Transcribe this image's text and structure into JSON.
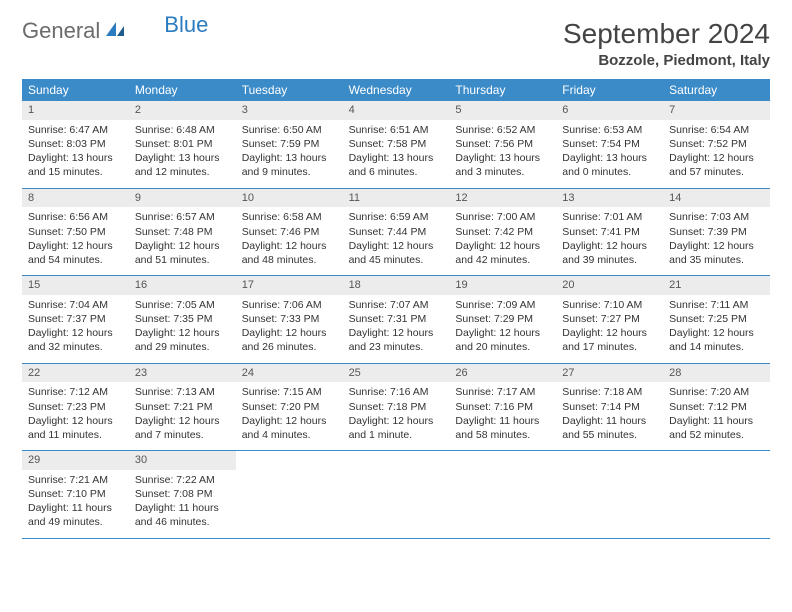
{
  "logo": {
    "text1": "General",
    "text2": "Blue"
  },
  "title": "September 2024",
  "location": "Bozzole, Piedmont, Italy",
  "colors": {
    "header_bg": "#3b8bc9",
    "header_text": "#ffffff",
    "daynum_bg": "#ececec",
    "week_divider": "#3b8bc9",
    "logo_gray": "#6b6b6b",
    "logo_blue": "#2b7bbf",
    "body_bg": "#ffffff"
  },
  "typography": {
    "title_fontsize": 28,
    "location_fontsize": 15,
    "dayhead_fontsize": 12,
    "cell_fontsize": 10.5
  },
  "day_headers": [
    "Sunday",
    "Monday",
    "Tuesday",
    "Wednesday",
    "Thursday",
    "Friday",
    "Saturday"
  ],
  "days": [
    {
      "n": "1",
      "sr": "6:47 AM",
      "ss": "8:03 PM",
      "dl": "13 hours and 15 minutes."
    },
    {
      "n": "2",
      "sr": "6:48 AM",
      "ss": "8:01 PM",
      "dl": "13 hours and 12 minutes."
    },
    {
      "n": "3",
      "sr": "6:50 AM",
      "ss": "7:59 PM",
      "dl": "13 hours and 9 minutes."
    },
    {
      "n": "4",
      "sr": "6:51 AM",
      "ss": "7:58 PM",
      "dl": "13 hours and 6 minutes."
    },
    {
      "n": "5",
      "sr": "6:52 AM",
      "ss": "7:56 PM",
      "dl": "13 hours and 3 minutes."
    },
    {
      "n": "6",
      "sr": "6:53 AM",
      "ss": "7:54 PM",
      "dl": "13 hours and 0 minutes."
    },
    {
      "n": "7",
      "sr": "6:54 AM",
      "ss": "7:52 PM",
      "dl": "12 hours and 57 minutes."
    },
    {
      "n": "8",
      "sr": "6:56 AM",
      "ss": "7:50 PM",
      "dl": "12 hours and 54 minutes."
    },
    {
      "n": "9",
      "sr": "6:57 AM",
      "ss": "7:48 PM",
      "dl": "12 hours and 51 minutes."
    },
    {
      "n": "10",
      "sr": "6:58 AM",
      "ss": "7:46 PM",
      "dl": "12 hours and 48 minutes."
    },
    {
      "n": "11",
      "sr": "6:59 AM",
      "ss": "7:44 PM",
      "dl": "12 hours and 45 minutes."
    },
    {
      "n": "12",
      "sr": "7:00 AM",
      "ss": "7:42 PM",
      "dl": "12 hours and 42 minutes."
    },
    {
      "n": "13",
      "sr": "7:01 AM",
      "ss": "7:41 PM",
      "dl": "12 hours and 39 minutes."
    },
    {
      "n": "14",
      "sr": "7:03 AM",
      "ss": "7:39 PM",
      "dl": "12 hours and 35 minutes."
    },
    {
      "n": "15",
      "sr": "7:04 AM",
      "ss": "7:37 PM",
      "dl": "12 hours and 32 minutes."
    },
    {
      "n": "16",
      "sr": "7:05 AM",
      "ss": "7:35 PM",
      "dl": "12 hours and 29 minutes."
    },
    {
      "n": "17",
      "sr": "7:06 AM",
      "ss": "7:33 PM",
      "dl": "12 hours and 26 minutes."
    },
    {
      "n": "18",
      "sr": "7:07 AM",
      "ss": "7:31 PM",
      "dl": "12 hours and 23 minutes."
    },
    {
      "n": "19",
      "sr": "7:09 AM",
      "ss": "7:29 PM",
      "dl": "12 hours and 20 minutes."
    },
    {
      "n": "20",
      "sr": "7:10 AM",
      "ss": "7:27 PM",
      "dl": "12 hours and 17 minutes."
    },
    {
      "n": "21",
      "sr": "7:11 AM",
      "ss": "7:25 PM",
      "dl": "12 hours and 14 minutes."
    },
    {
      "n": "22",
      "sr": "7:12 AM",
      "ss": "7:23 PM",
      "dl": "12 hours and 11 minutes."
    },
    {
      "n": "23",
      "sr": "7:13 AM",
      "ss": "7:21 PM",
      "dl": "12 hours and 7 minutes."
    },
    {
      "n": "24",
      "sr": "7:15 AM",
      "ss": "7:20 PM",
      "dl": "12 hours and 4 minutes."
    },
    {
      "n": "25",
      "sr": "7:16 AM",
      "ss": "7:18 PM",
      "dl": "12 hours and 1 minute."
    },
    {
      "n": "26",
      "sr": "7:17 AM",
      "ss": "7:16 PM",
      "dl": "11 hours and 58 minutes."
    },
    {
      "n": "27",
      "sr": "7:18 AM",
      "ss": "7:14 PM",
      "dl": "11 hours and 55 minutes."
    },
    {
      "n": "28",
      "sr": "7:20 AM",
      "ss": "7:12 PM",
      "dl": "11 hours and 52 minutes."
    },
    {
      "n": "29",
      "sr": "7:21 AM",
      "ss": "7:10 PM",
      "dl": "11 hours and 49 minutes."
    },
    {
      "n": "30",
      "sr": "7:22 AM",
      "ss": "7:08 PM",
      "dl": "11 hours and 46 minutes."
    }
  ],
  "labels": {
    "sunrise": "Sunrise:",
    "sunset": "Sunset:",
    "daylight": "Daylight:"
  },
  "grid": {
    "columns": 7,
    "start_offset": 0,
    "trailing_empty": 5
  }
}
